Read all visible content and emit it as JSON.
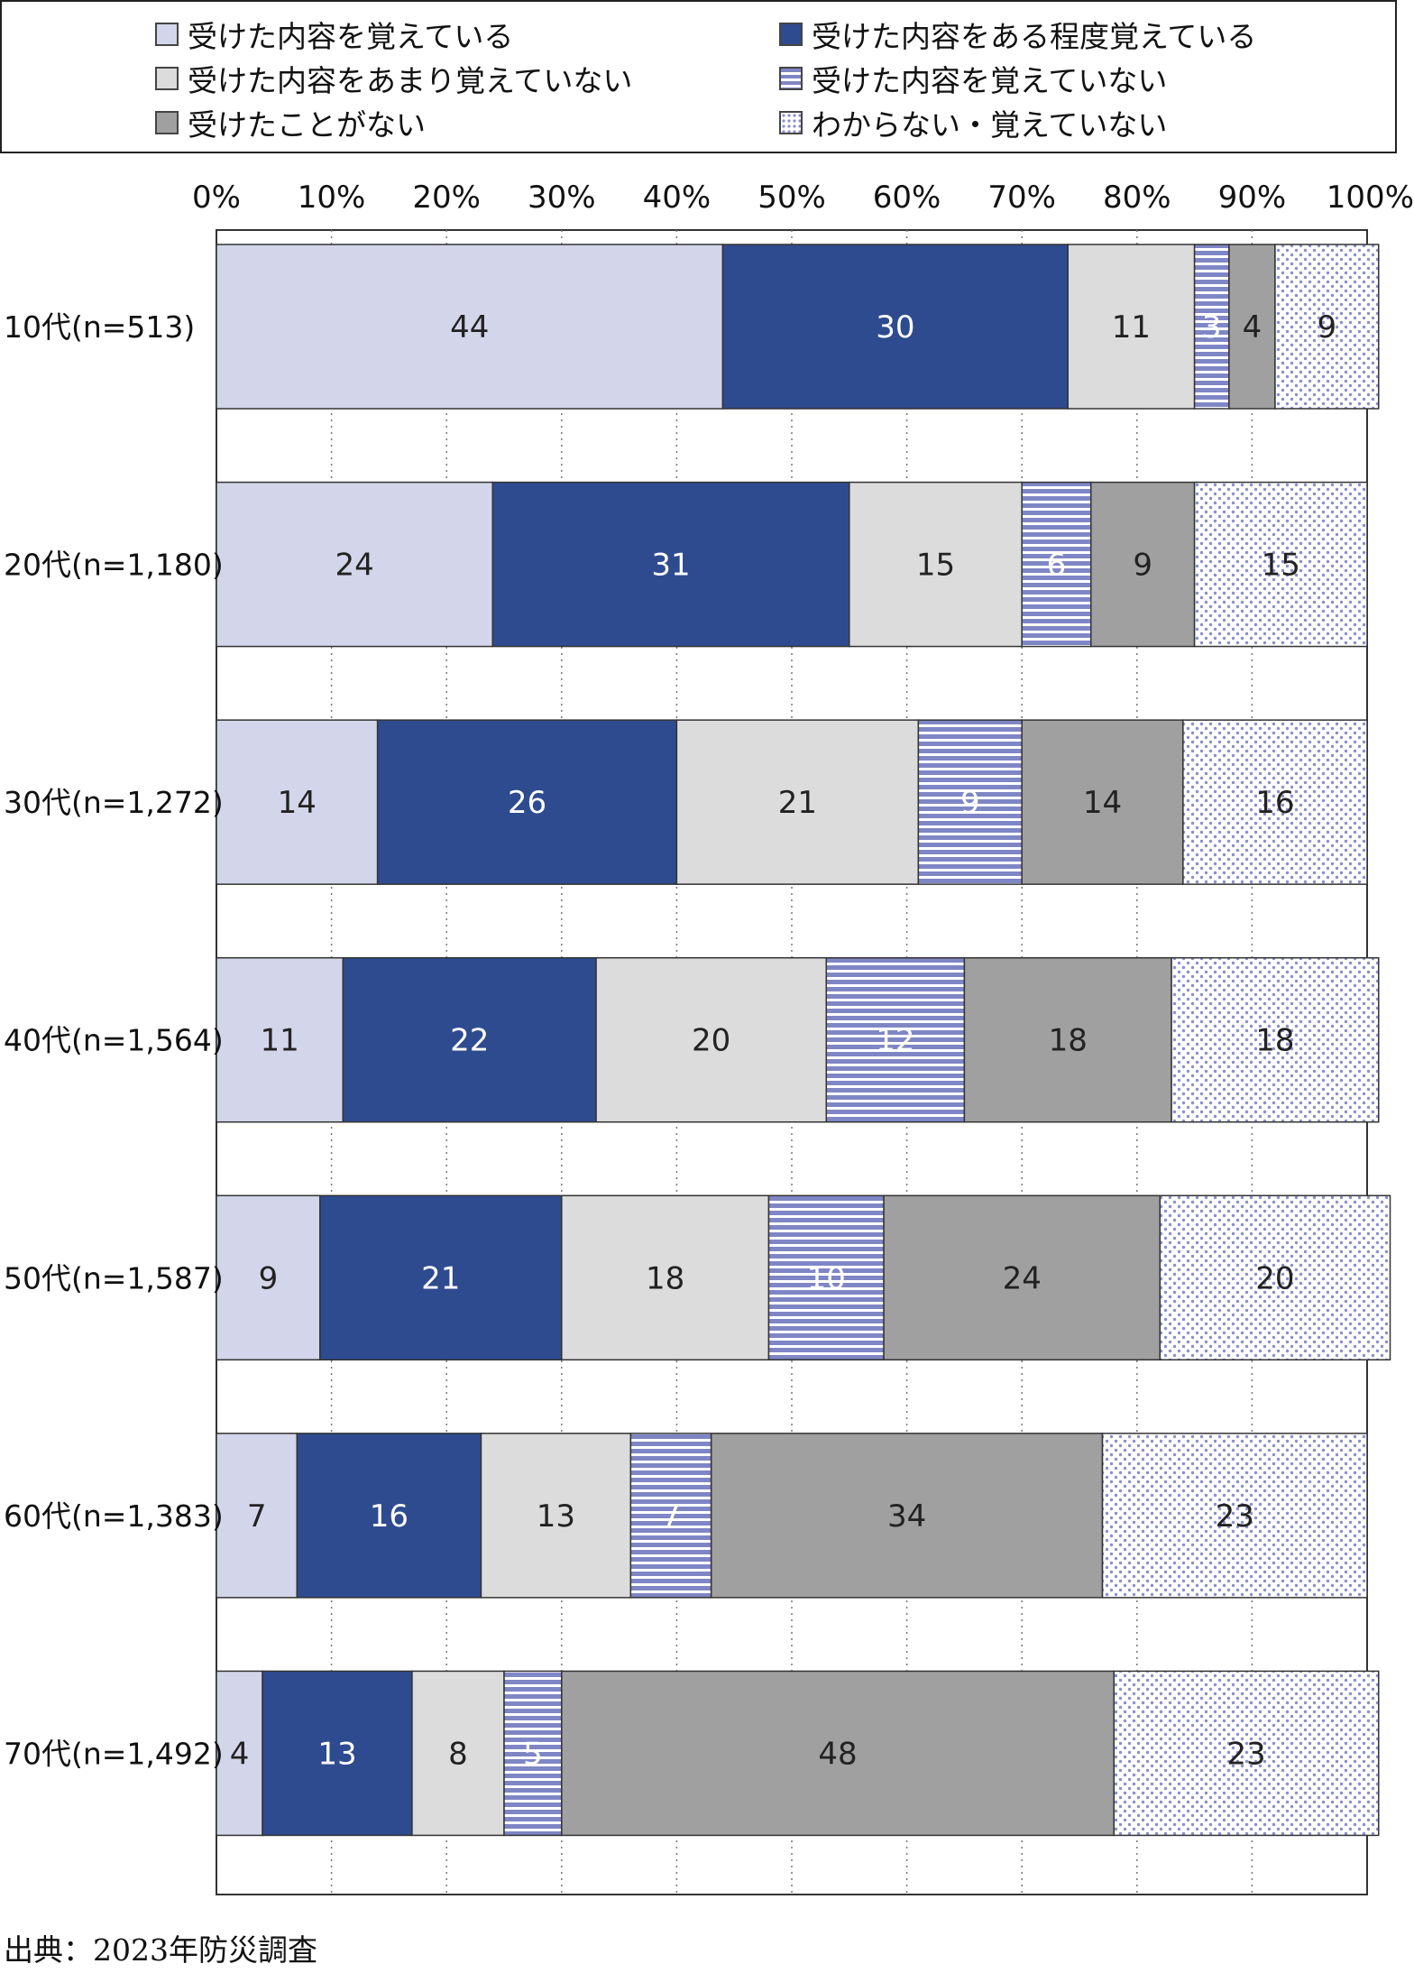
{
  "legend": {
    "items": [
      {
        "label": "受けた内容を覚えている",
        "pattern": "solid",
        "color": "#d3d6ea"
      },
      {
        "label": "受けた内容をある程度覚えている",
        "pattern": "solid",
        "color": "#2f4b8f"
      },
      {
        "label": "受けた内容をあまり覚えていない",
        "pattern": "solid",
        "color": "#dcdcdc"
      },
      {
        "label": "受けた内容を覚えていない",
        "pattern": "stripes",
        "color": "#7f86c5"
      },
      {
        "label": "受けたことがない",
        "pattern": "solid",
        "color": "#a0a0a0"
      },
      {
        "label": "わからない・覚えていない",
        "pattern": "dots",
        "color": "#8a90cc"
      }
    ]
  },
  "chart_data": {
    "type": "bar",
    "orientation": "horizontal",
    "stacked": true,
    "percent_stacked": true,
    "xlim": [
      0,
      100
    ],
    "xticks": [
      "0%",
      "10%",
      "20%",
      "30%",
      "40%",
      "50%",
      "60%",
      "70%",
      "80%",
      "90%",
      "100%"
    ],
    "grid": "vertical-dotted",
    "legend_position": "top",
    "categories": [
      "10代(n=513)",
      "20代(n=1,180)",
      "30代(n=1,272)",
      "40代(n=1,564)",
      "50代(n=1,587)",
      "60代(n=1,383)",
      "70代(n=1,492)"
    ],
    "series": [
      {
        "name": "受けた内容を覚えている",
        "values": [
          44,
          24,
          14,
          11,
          9,
          7,
          4
        ],
        "label_color": "#222222"
      },
      {
        "name": "受けた内容をある程度覚えている",
        "values": [
          30,
          31,
          26,
          22,
          21,
          16,
          13
        ],
        "label_color": "#ffffff"
      },
      {
        "name": "受けた内容をあまり覚えていない",
        "values": [
          11,
          15,
          21,
          20,
          18,
          13,
          8
        ],
        "label_color": "#222222"
      },
      {
        "name": "受けた内容を覚えていない",
        "values": [
          3,
          6,
          9,
          12,
          10,
          7,
          5
        ],
        "label_color": "#ffffff"
      },
      {
        "name": "受けたことがない",
        "values": [
          4,
          9,
          14,
          18,
          24,
          34,
          48
        ],
        "label_color": "#222222"
      },
      {
        "name": "わからない・覚えていない",
        "values": [
          9,
          15,
          16,
          18,
          20,
          23,
          23
        ],
        "label_color": "#222222"
      }
    ]
  },
  "source": "出典：2023年防災調査"
}
